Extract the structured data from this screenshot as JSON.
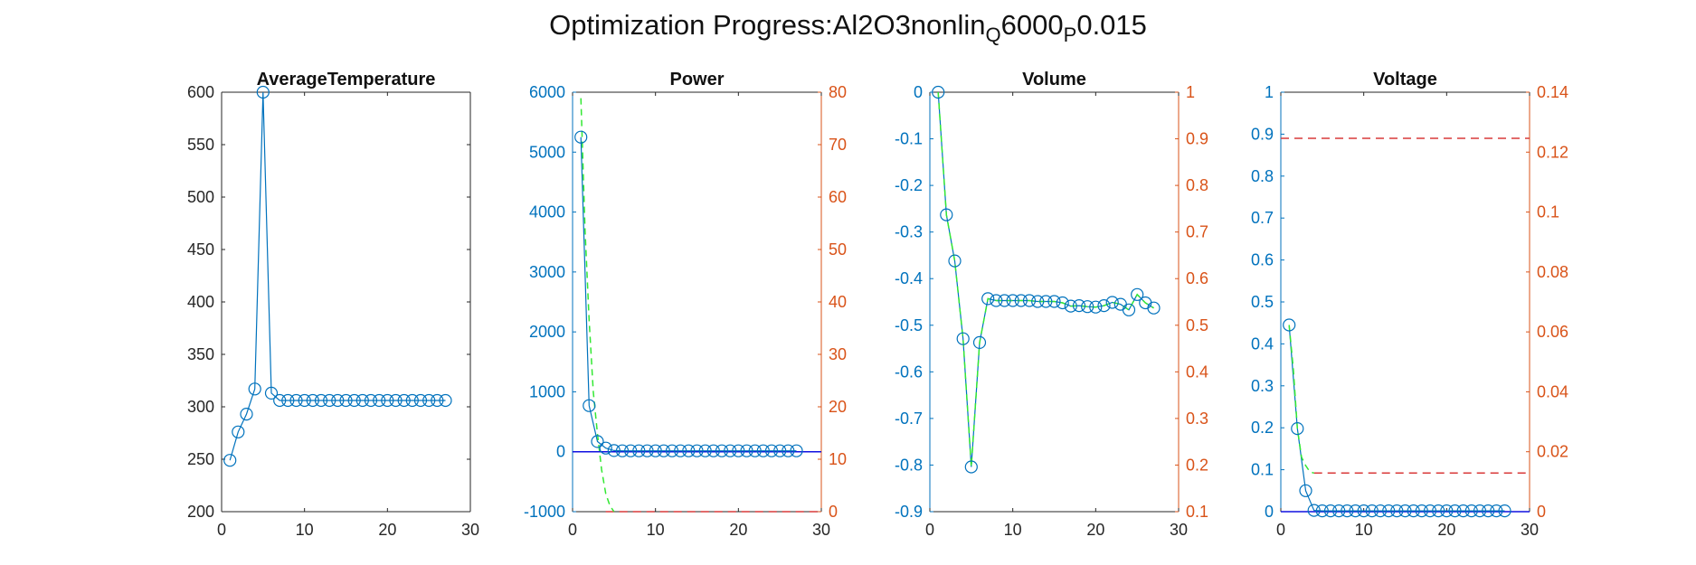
{
  "figure": {
    "title_parts": {
      "base": "Optimization Progress:Al2O3nonlin",
      "sub1": "Q",
      "mid": "6000",
      "sub2": "P",
      "end": "0.015"
    }
  },
  "colors": {
    "left_axis": "#0072BD",
    "right_axis": "#D95319",
    "axis_black": "#262626",
    "marker_line": "#0072BD",
    "green_dashed": "#33E833",
    "red_dashed": "#D93A3A",
    "blue_line": "#1010E0"
  },
  "chart_data": [
    {
      "type": "line",
      "title": "AverageTemperature",
      "xlim": [
        0,
        30
      ],
      "xticks": [
        0,
        10,
        20,
        30
      ],
      "ylim": [
        200,
        600
      ],
      "yticks": [
        200,
        250,
        300,
        350,
        400,
        450,
        500,
        550,
        600
      ],
      "yaxis_color": "black",
      "series": [
        {
          "style": "marker-line",
          "x": [
            1,
            2,
            3,
            4,
            5,
            6,
            7,
            8,
            9,
            10,
            11,
            12,
            13,
            14,
            15,
            16,
            17,
            18,
            19,
            20,
            21,
            22,
            23,
            24,
            25,
            26,
            27
          ],
          "y": [
            249,
            276,
            293,
            317,
            600,
            313,
            306,
            306,
            306,
            306,
            306,
            306,
            306,
            306,
            306,
            306,
            306,
            306,
            306,
            306,
            306,
            306,
            306,
            306,
            306,
            306,
            306
          ]
        }
      ]
    },
    {
      "type": "line",
      "title": "Power",
      "xlim": [
        0,
        30
      ],
      "xticks": [
        0,
        10,
        20,
        30
      ],
      "ylim": [
        -1000,
        6000
      ],
      "yticks": [
        -1000,
        0,
        1000,
        2000,
        3000,
        4000,
        5000,
        6000
      ],
      "yaxis_color": "blue",
      "y2lim": [
        0,
        80
      ],
      "y2ticks": [
        0,
        10,
        20,
        30,
        40,
        50,
        60,
        70,
        80
      ],
      "series": [
        {
          "style": "marker-line",
          "x": [
            1,
            2,
            3,
            4,
            5,
            6,
            7,
            8,
            9,
            10,
            11,
            12,
            13,
            14,
            15,
            16,
            17,
            18,
            19,
            20,
            21,
            22,
            23,
            24,
            25,
            26,
            27
          ],
          "y": [
            5250,
            770,
            170,
            60,
            20,
            15,
            15,
            15,
            15,
            15,
            15,
            15,
            15,
            15,
            15,
            15,
            15,
            15,
            15,
            15,
            15,
            15,
            15,
            15,
            15,
            15,
            15
          ]
        },
        {
          "style": "green-dashed",
          "x": [
            1,
            1.5,
            2,
            2.5,
            3,
            3.5,
            4,
            4.5,
            5
          ],
          "y": [
            5900,
            3700,
            2200,
            1000,
            300,
            -300,
            -700,
            -900,
            -1000
          ]
        },
        {
          "style": "blue-solid",
          "x": [
            0,
            30
          ],
          "y": [
            0,
            0
          ]
        },
        {
          "style": "red-dashed",
          "axis": "right",
          "x": [
            4,
            30
          ],
          "y": [
            0,
            0
          ]
        }
      ]
    },
    {
      "type": "line",
      "title": "Volume",
      "xlim": [
        0,
        30
      ],
      "xticks": [
        0,
        10,
        20,
        30
      ],
      "ylim": [
        -0.9,
        0
      ],
      "yticks": [
        -0.9,
        -0.8,
        -0.7,
        -0.6,
        -0.5,
        -0.4,
        -0.3,
        -0.2,
        -0.1,
        0
      ],
      "yaxis_color": "blue",
      "y2lim": [
        0.1,
        1
      ],
      "y2ticks": [
        0.1,
        0.2,
        0.3,
        0.4,
        0.5,
        0.6,
        0.7,
        0.8,
        0.9,
        1
      ],
      "series": [
        {
          "style": "marker-line",
          "x": [
            1,
            2,
            3,
            4,
            5,
            6,
            7,
            8,
            9,
            10,
            11,
            12,
            13,
            14,
            15,
            16,
            17,
            18,
            19,
            20,
            21,
            22,
            23,
            24,
            25,
            26,
            27
          ],
          "y": [
            0,
            -0.263,
            -0.362,
            -0.529,
            -0.804,
            -0.537,
            -0.443,
            -0.447,
            -0.447,
            -0.447,
            -0.447,
            -0.447,
            -0.449,
            -0.449,
            -0.449,
            -0.452,
            -0.459,
            -0.458,
            -0.46,
            -0.461,
            -0.458,
            -0.451,
            -0.455,
            -0.467,
            -0.434,
            -0.452,
            -0.463
          ]
        },
        {
          "style": "green-dashed",
          "x": [
            1,
            2,
            3,
            4,
            5,
            6,
            7,
            8,
            9,
            10,
            11,
            12,
            13,
            14,
            15,
            16,
            17,
            18,
            19,
            20,
            21,
            22,
            23,
            24,
            25,
            26,
            27
          ],
          "y": [
            0,
            -0.263,
            -0.362,
            -0.529,
            -0.804,
            -0.537,
            -0.443,
            -0.447,
            -0.447,
            -0.447,
            -0.447,
            -0.447,
            -0.449,
            -0.449,
            -0.449,
            -0.452,
            -0.459,
            -0.458,
            -0.46,
            -0.461,
            -0.458,
            -0.451,
            -0.455,
            -0.467,
            -0.434,
            -0.452,
            -0.463
          ]
        }
      ]
    },
    {
      "type": "line",
      "title": "Voltage",
      "xlim": [
        0,
        30
      ],
      "xticks": [
        0,
        10,
        20,
        30
      ],
      "ylim": [
        0,
        1
      ],
      "yticks": [
        0,
        0.1,
        0.2,
        0.3,
        0.4,
        0.5,
        0.6,
        0.7,
        0.8,
        0.9,
        1
      ],
      "yaxis_color": "blue",
      "y2lim": [
        0,
        0.14
      ],
      "y2ticks": [
        0,
        0.02,
        0.04,
        0.06,
        0.08,
        0.1,
        0.12,
        0.14
      ],
      "series": [
        {
          "style": "marker-line",
          "x": [
            1,
            2,
            3,
            4,
            5,
            6,
            7,
            8,
            9,
            10,
            11,
            12,
            13,
            14,
            15,
            16,
            17,
            18,
            19,
            20,
            21,
            22,
            23,
            24,
            25,
            26,
            27
          ],
          "y": [
            0.445,
            0.198,
            0.05,
            0.003,
            0.002,
            0.002,
            0.002,
            0.002,
            0.002,
            0.002,
            0.002,
            0.002,
            0.002,
            0.002,
            0.002,
            0.002,
            0.002,
            0.002,
            0.002,
            0.002,
            0.002,
            0.002,
            0.002,
            0.002,
            0.002,
            0.002,
            0.002
          ]
        },
        {
          "style": "green-dashed",
          "x": [
            1,
            1.5,
            2,
            2.5,
            3,
            3.5,
            4
          ],
          "y": [
            0.445,
            0.34,
            0.198,
            0.13,
            0.11,
            0.095,
            0.092
          ]
        },
        {
          "style": "blue-solid",
          "x": [
            0,
            30
          ],
          "y": [
            0,
            0
          ]
        },
        {
          "style": "red-dashed",
          "x": [
            0,
            30
          ],
          "y": [
            0.89,
            0.89
          ]
        },
        {
          "style": "red-dashed",
          "x": [
            4,
            30
          ],
          "y": [
            0.092,
            0.092
          ]
        }
      ]
    }
  ]
}
